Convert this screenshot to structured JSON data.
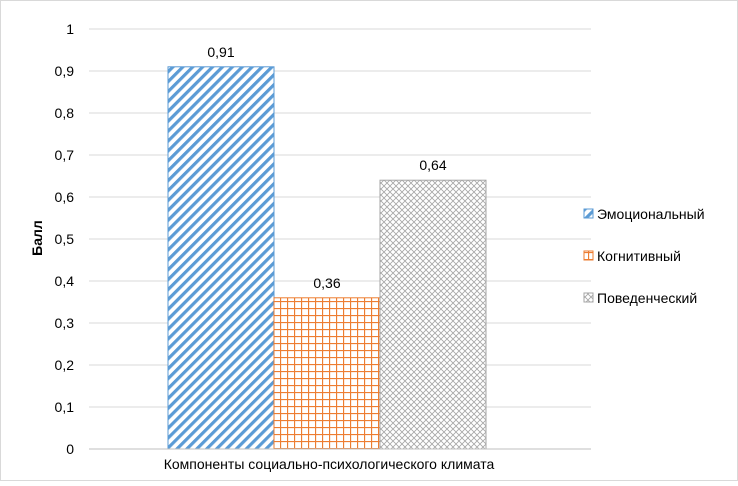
{
  "chart_data": {
    "type": "bar",
    "xlabel": "Компоненты социально-психологического климата",
    "ylabel": "Балл",
    "ylim": [
      0,
      1
    ],
    "ytick_step": 0.1,
    "y_tick_labels": [
      "0",
      "0,1",
      "0,2",
      "0,3",
      "0,4",
      "0,5",
      "0,6",
      "0,7",
      "0,8",
      "0,9",
      "1"
    ],
    "grid": true,
    "legend_position": "right",
    "series": [
      {
        "name": "Эмоциональный",
        "value": 0.91,
        "label": "0,91",
        "color": "#5b9bd5",
        "pattern": "diagonal-stripes"
      },
      {
        "name": "Когнитивный",
        "value": 0.36,
        "label": "0,36",
        "color": "#ed7d31",
        "pattern": "grid"
      },
      {
        "name": "Поведенческий",
        "value": 0.64,
        "label": "0,64",
        "color": "#a5a5a5",
        "pattern": "diagonal-cross"
      }
    ]
  }
}
